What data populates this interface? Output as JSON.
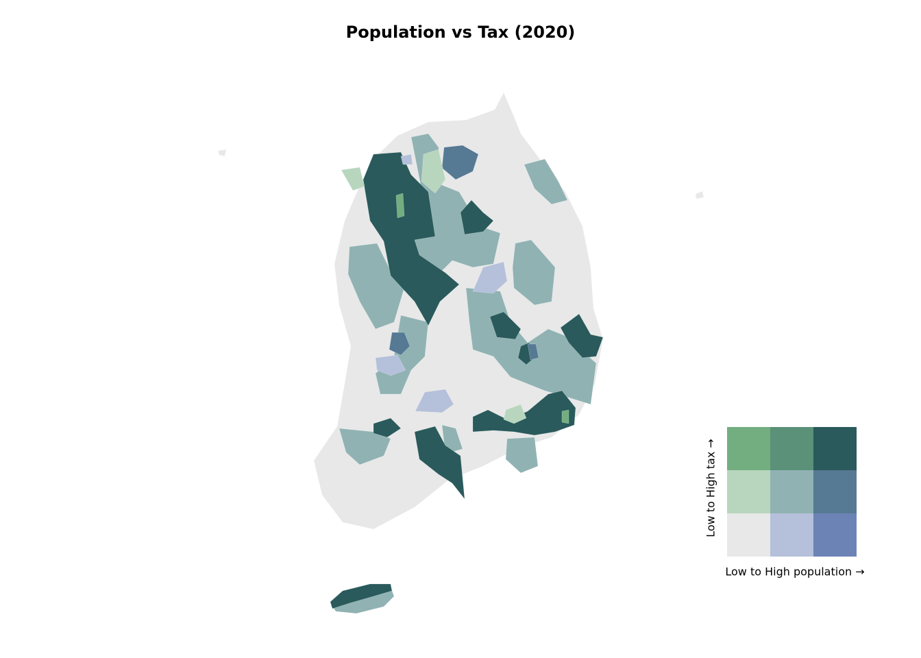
{
  "title": "Population vs Tax (2020)",
  "legend": {
    "colors": [
      [
        "#73ae80",
        "#5a9178",
        "#2a5a5b"
      ],
      [
        "#b8d6be",
        "#90b2b3",
        "#567994"
      ],
      [
        "#e8e8e8",
        "#b5c0da",
        "#6c83b5"
      ]
    ],
    "x_label": "Low to High population →",
    "y_label": "Low to High tax →"
  }
}
